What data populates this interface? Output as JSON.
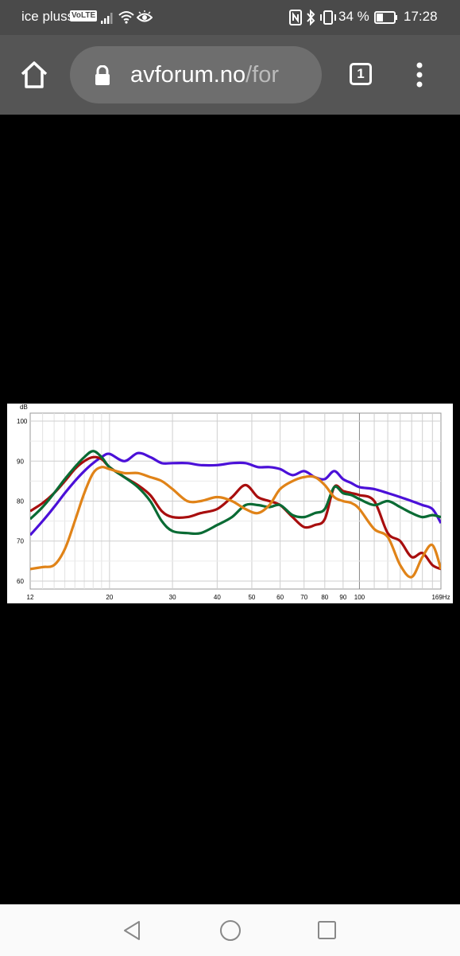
{
  "status_bar": {
    "carrier": "ice pluss",
    "volte_badge": "VoLTE",
    "battery": "34 %",
    "time": "17:28"
  },
  "browser": {
    "url_host": "avforum.no",
    "url_path": "/for",
    "tab_count": "1"
  },
  "chart_data": {
    "type": "line",
    "ylabel": "dB",
    "x_unit": "Hz",
    "x_scale": "log",
    "xlim": [
      12,
      169
    ],
    "ylim": [
      58,
      102
    ],
    "x_ticks": [
      "12",
      "20",
      "30",
      "40",
      "50",
      "60",
      "70",
      "80",
      "90",
      "100",
      "169Hz"
    ],
    "y_ticks": [
      "100",
      "90",
      "80",
      "70",
      "60"
    ],
    "grid": true,
    "series": [
      {
        "color": "#4b10d8",
        "x": [
          12,
          13,
          14,
          15,
          16,
          17,
          18,
          19,
          20,
          22,
          24,
          26,
          28,
          30,
          33,
          36,
          40,
          44,
          48,
          52,
          56,
          60,
          65,
          70,
          75,
          80,
          85,
          90,
          95,
          100,
          110,
          120,
          130,
          140,
          150,
          160,
          169
        ],
        "y": [
          71.5,
          75,
          78.5,
          82,
          85,
          87.5,
          89.5,
          91,
          91.8,
          90,
          92,
          91,
          89.5,
          89.5,
          89.5,
          89,
          89,
          89.5,
          89.5,
          88.5,
          88.5,
          88,
          86.5,
          87.5,
          86,
          85.5,
          87.5,
          85.5,
          84.5,
          83.5,
          83,
          82,
          81,
          80,
          79,
          78,
          74.5
        ]
      },
      {
        "color": "#a80e0e",
        "x": [
          12,
          13,
          14,
          15,
          16,
          17,
          18,
          19,
          20,
          22,
          24,
          26,
          28,
          30,
          33,
          36,
          40,
          44,
          48,
          52,
          56,
          60,
          65,
          70,
          75,
          80,
          85,
          90,
          95,
          100,
          110,
          120,
          130,
          140,
          150,
          160,
          169
        ],
        "y": [
          77.5,
          79.5,
          82,
          85,
          88,
          90,
          91,
          90.5,
          88.5,
          86,
          84,
          81.5,
          77.5,
          76,
          76,
          77,
          78,
          81,
          84,
          81,
          80,
          79,
          76,
          73.5,
          74,
          75.5,
          83.5,
          82.5,
          82,
          81.5,
          80,
          72,
          70,
          66,
          67,
          64,
          63
        ]
      },
      {
        "color": "#0a6b34",
        "x": [
          12,
          13,
          14,
          15,
          16,
          17,
          18,
          19,
          20,
          22,
          24,
          26,
          28,
          30,
          33,
          36,
          40,
          44,
          48,
          52,
          56,
          60,
          65,
          70,
          75,
          80,
          85,
          90,
          95,
          100,
          110,
          120,
          130,
          140,
          150,
          160,
          169
        ],
        "y": [
          75.5,
          78.5,
          82,
          85.5,
          88.5,
          91,
          92.5,
          91,
          88.5,
          86,
          83.5,
          80,
          75,
          72.5,
          72,
          72,
          74,
          76,
          79,
          79,
          78.5,
          79,
          76.5,
          76,
          77,
          78,
          83.5,
          82,
          81.5,
          80.5,
          79,
          80,
          78.5,
          77,
          76,
          76.5,
          76
        ]
      },
      {
        "color": "#e08318",
        "x": [
          12,
          13,
          14,
          15,
          16,
          17,
          18,
          19,
          20,
          22,
          24,
          26,
          28,
          30,
          33,
          36,
          40,
          44,
          48,
          52,
          56,
          60,
          65,
          70,
          75,
          80,
          85,
          90,
          95,
          100,
          110,
          120,
          130,
          140,
          150,
          160,
          169
        ],
        "y": [
          63,
          63.5,
          64,
          68,
          75,
          82,
          87,
          88.5,
          88,
          87,
          87,
          86,
          85,
          83,
          80,
          80,
          81,
          80,
          78,
          77,
          79,
          83,
          85,
          86,
          86,
          84,
          81,
          80,
          79.5,
          78,
          73,
          71,
          64,
          61,
          66,
          69,
          63
        ]
      }
    ]
  }
}
